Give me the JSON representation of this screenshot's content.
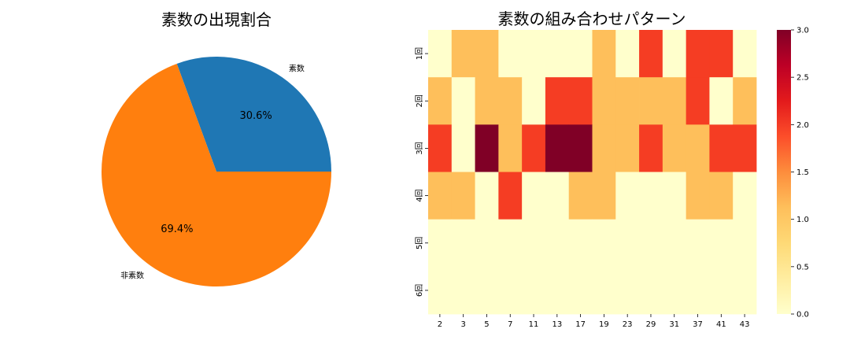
{
  "chart_data": [
    {
      "type": "pie",
      "title": "素数の出現割合",
      "labels": [
        "素数",
        "非素数"
      ],
      "values": [
        30.6,
        69.4
      ],
      "percent_labels": [
        "30.6%",
        "69.4%"
      ],
      "colors": [
        "#1f77b4",
        "#ff7f0e"
      ],
      "start_angle_deg": 0,
      "direction": "counterclockwise"
    },
    {
      "type": "heatmap",
      "title": "素数の組み合わせパターン",
      "x_categories": [
        "2",
        "3",
        "5",
        "7",
        "11",
        "13",
        "17",
        "19",
        "23",
        "29",
        "31",
        "37",
        "41",
        "43"
      ],
      "y_categories": [
        "1回",
        "2回",
        "3回",
        "4回",
        "5回",
        "6回"
      ],
      "values": [
        [
          0,
          1,
          1,
          0,
          0,
          0,
          0,
          1,
          0,
          2,
          0,
          2,
          2,
          0
        ],
        [
          1,
          0,
          1,
          1,
          0,
          2,
          2,
          1,
          1,
          1,
          1,
          2,
          0,
          1
        ],
        [
          2,
          0,
          3,
          1,
          2,
          3,
          3,
          1,
          1,
          2,
          1,
          1,
          2,
          2
        ],
        [
          1,
          1,
          0,
          2,
          0,
          0,
          1,
          1,
          0,
          0,
          0,
          1,
          1,
          0
        ],
        [
          0,
          0,
          0,
          0,
          0,
          0,
          0,
          0,
          0,
          0,
          0,
          0,
          0,
          0
        ],
        [
          0,
          0,
          0,
          0,
          0,
          0,
          0,
          0,
          0,
          0,
          0,
          0,
          0,
          0
        ]
      ],
      "colormap": "YlOrRd",
      "color_scale": {
        "0": "#ffffcc",
        "1": "#febf5b",
        "2": "#f53d23",
        "3": "#800026"
      },
      "colorbar": {
        "range": [
          0.0,
          3.0
        ],
        "ticks": [
          "0.0",
          "0.5",
          "1.0",
          "1.5",
          "2.0",
          "2.5",
          "3.0"
        ]
      }
    }
  ]
}
